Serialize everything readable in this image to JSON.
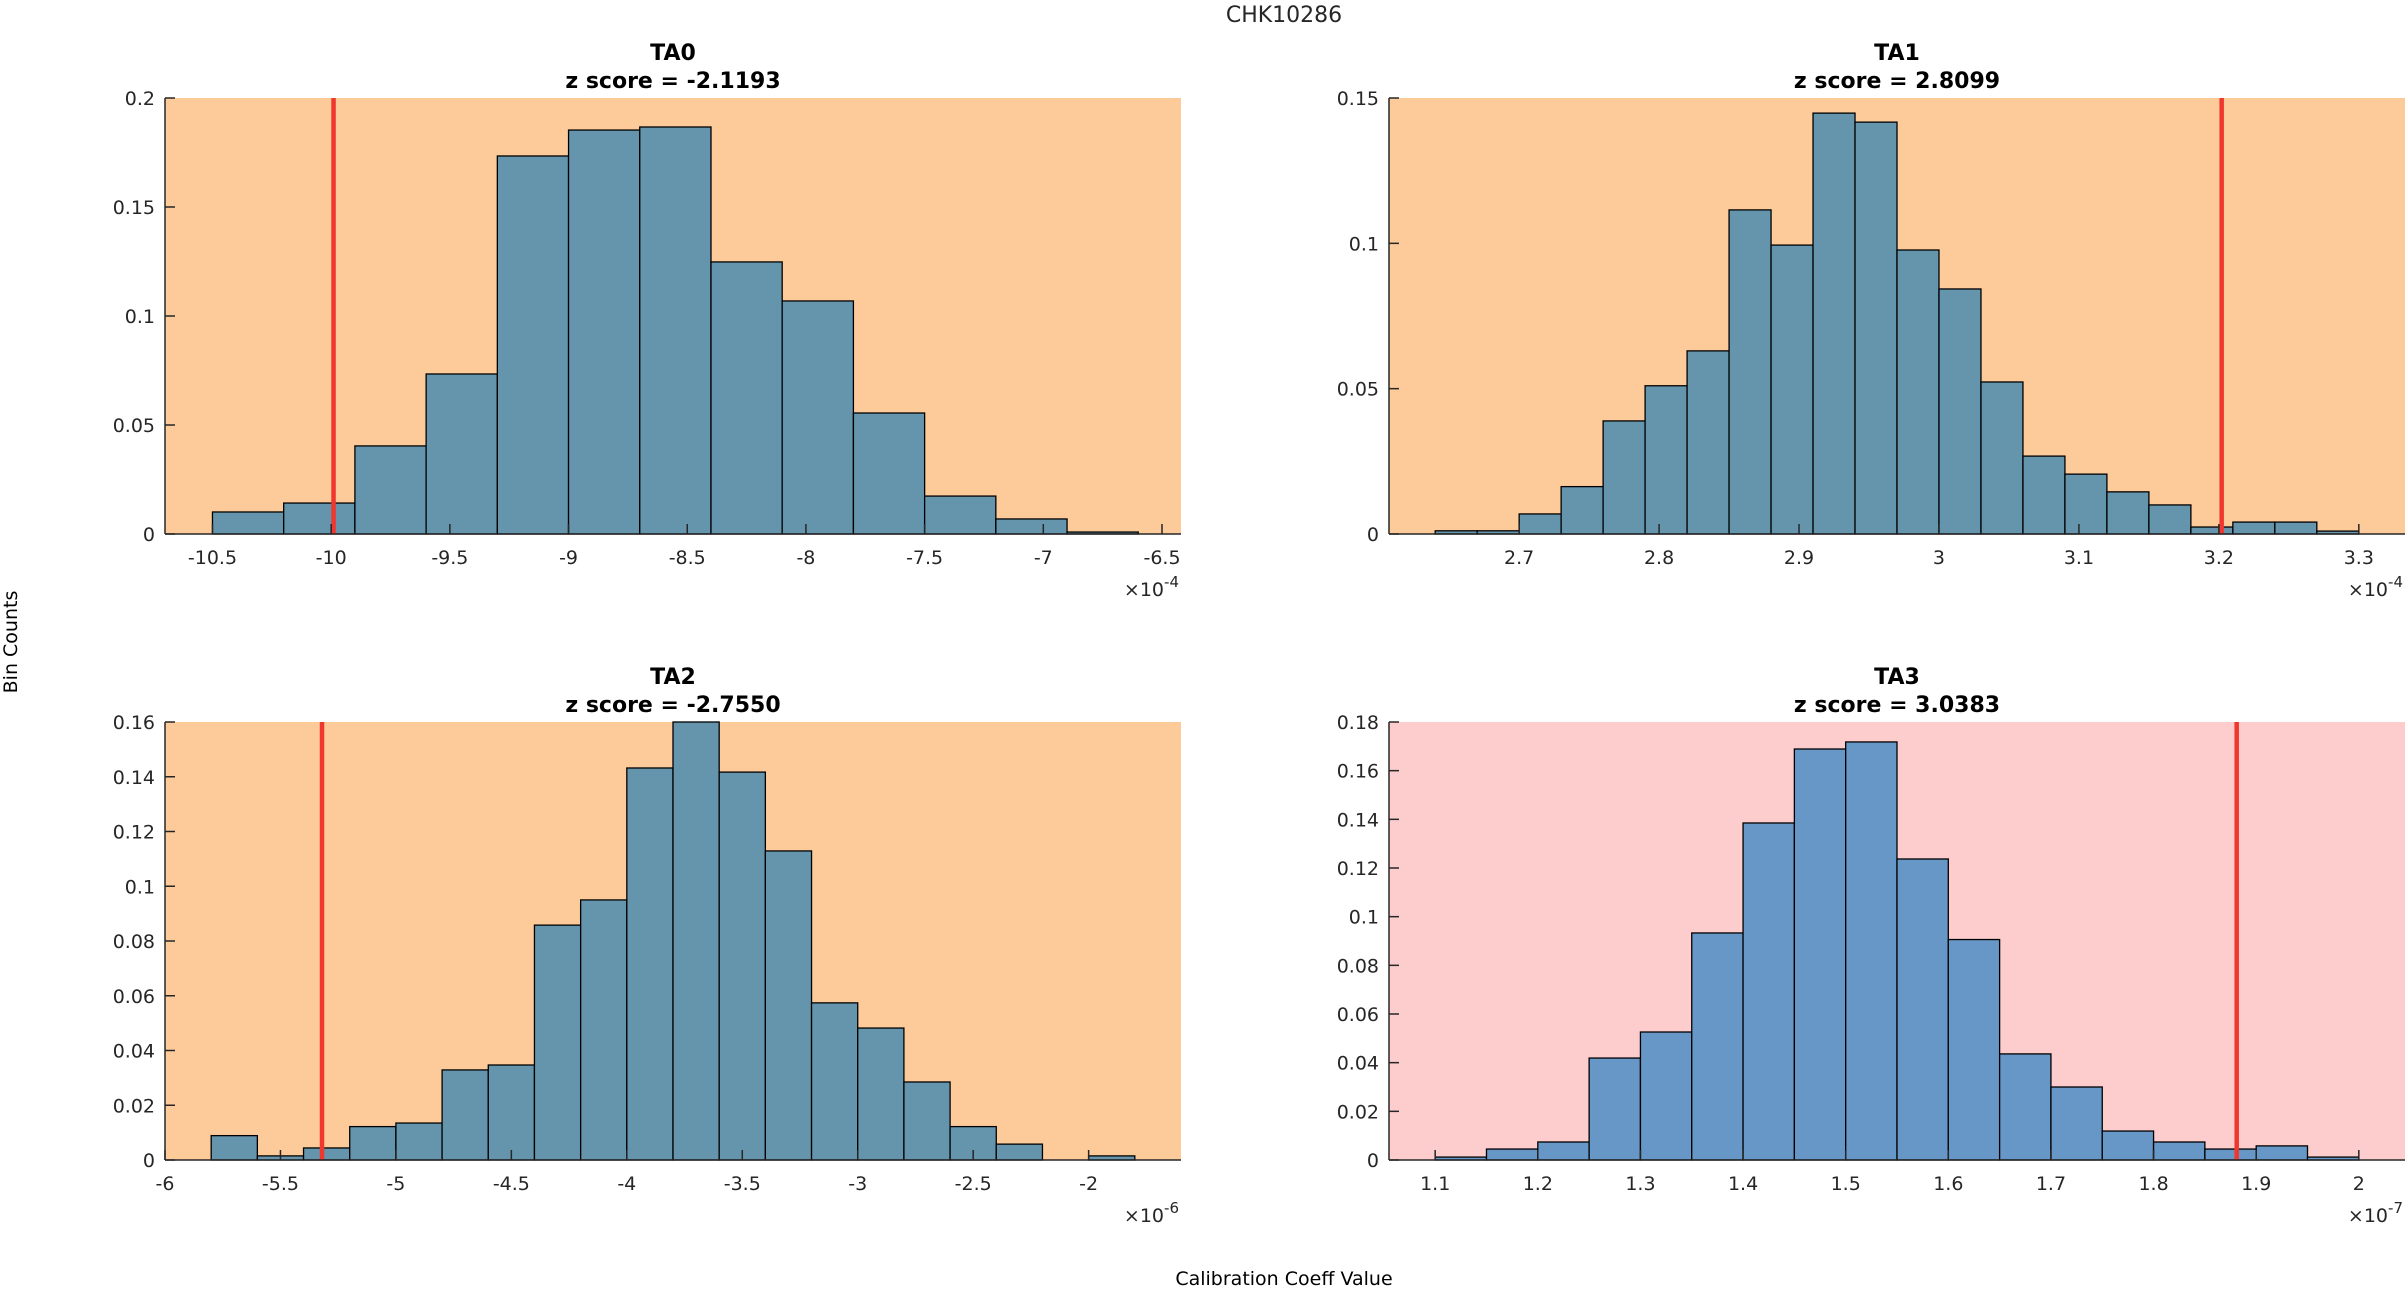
{
  "figure": {
    "title": "CHK10286",
    "ylabel": "Bin Counts",
    "xlabel": "Calibration Coeff Value",
    "colors": {
      "orange_bg": "#FDCA9A",
      "pink_bg": "#FDCCCC",
      "bar_steel": "#6595AD",
      "bar_blue": "#6797C6",
      "bar_edge": "#000000",
      "marker_line": "#F0372E"
    }
  },
  "chart_data": [
    {
      "type": "bar",
      "name": "TA0",
      "title": "TA0",
      "subtitle": "z score = -2.1193",
      "background": "orange",
      "bar_color": "steel",
      "x_exponent_label": "×10",
      "x_exponent": "-4",
      "bin_edges_start": -10.5,
      "bin_width": 0.3,
      "values": [
        0.0101,
        0.0142,
        0.0404,
        0.0734,
        0.1734,
        0.1853,
        0.1867,
        0.1248,
        0.1069,
        0.0555,
        0.0174,
        0.0069,
        0.0009
      ],
      "marker_x": -9.99,
      "xlim": [
        -10.7,
        -6.42
      ],
      "ylim": [
        0,
        0.2
      ],
      "xticks": [
        -10.5,
        -10,
        -9.5,
        -9,
        -8.5,
        -8,
        -7.5,
        -7,
        -6.5
      ],
      "xtick_labels": [
        "-10.5",
        "-10",
        "-9.5",
        "-9",
        "-8.5",
        "-8",
        "-7.5",
        "-7",
        "-6.5"
      ],
      "yticks": [
        0,
        0.05,
        0.1,
        0.15,
        0.2
      ],
      "ytick_labels": [
        "0",
        "0.05",
        "0.1",
        "0.15",
        "0.2"
      ]
    },
    {
      "type": "bar",
      "name": "TA1",
      "title": "TA1",
      "subtitle": "z score = 2.8099",
      "background": "orange",
      "bar_color": "steel",
      "x_exponent_label": "×10",
      "x_exponent": "-4",
      "bin_edges_start": 2.64,
      "bin_width": 0.03,
      "values": [
        0.0011,
        0.0011,
        0.0069,
        0.0163,
        0.0389,
        0.051,
        0.063,
        0.1115,
        0.0994,
        0.1448,
        0.1417,
        0.0977,
        0.0843,
        0.0523,
        0.0268,
        0.0206,
        0.0145,
        0.01,
        0.0024,
        0.0041,
        0.0041,
        0.001
      ],
      "marker_x": 3.202,
      "xlim": [
        2.607,
        3.333
      ],
      "ylim": [
        0,
        0.15
      ],
      "xticks": [
        2.7,
        2.8,
        2.9,
        3.0,
        3.1,
        3.2,
        3.3
      ],
      "xtick_labels": [
        "2.7",
        "2.8",
        "2.9",
        "3",
        "3.1",
        "3.2",
        "3.3"
      ],
      "yticks": [
        0,
        0.05,
        0.1,
        0.15
      ],
      "ytick_labels": [
        "0",
        "0.05",
        "0.1",
        "0.15"
      ]
    },
    {
      "type": "bar",
      "name": "TA2",
      "title": "TA2",
      "subtitle": "z score = -2.7550",
      "background": "orange",
      "bar_color": "steel",
      "x_exponent_label": "×10",
      "x_exponent": "-6",
      "bin_edges_start": -5.8,
      "bin_width": 0.2,
      "values": [
        0.0089,
        0.0015,
        0.0044,
        0.0122,
        0.0135,
        0.0329,
        0.0347,
        0.0858,
        0.095,
        0.1432,
        0.16,
        0.1417,
        0.1129,
        0.0574,
        0.0482,
        0.0285,
        0.0122,
        0.0058,
        0.0,
        0.0015
      ],
      "marker_x": -5.32,
      "xlim": [
        -6.0,
        -1.6
      ],
      "ylim": [
        0,
        0.16
      ],
      "xticks": [
        -6,
        -5.5,
        -5,
        -4.5,
        -4,
        -3.5,
        -3,
        -2.5,
        -2
      ],
      "xtick_labels": [
        "-6",
        "-5.5",
        "-5",
        "-4.5",
        "-4",
        "-3.5",
        "-3",
        "-2.5",
        "-2"
      ],
      "yticks": [
        0,
        0.02,
        0.04,
        0.06,
        0.08,
        0.1,
        0.12,
        0.14,
        0.16
      ],
      "ytick_labels": [
        "0",
        "0.02",
        "0.04",
        "0.06",
        "0.08",
        "0.1",
        "0.12",
        "0.14",
        "0.16"
      ]
    },
    {
      "type": "bar",
      "name": "TA3",
      "title": "TA3",
      "subtitle": "z score = 3.0383",
      "background": "pink",
      "bar_color": "blue",
      "x_exponent_label": "×10",
      "x_exponent": "-7",
      "bin_edges_start": 1.1,
      "bin_width": 0.05,
      "values": [
        0.0012,
        0.0045,
        0.0074,
        0.0419,
        0.0526,
        0.0933,
        0.1385,
        0.1689,
        0.1718,
        0.1237,
        0.0906,
        0.0436,
        0.03,
        0.0119,
        0.0074,
        0.0045,
        0.0058,
        0.0012
      ],
      "marker_x": 1.881,
      "xlim": [
        1.055,
        2.045
      ],
      "ylim": [
        0,
        0.18
      ],
      "xticks": [
        1.1,
        1.2,
        1.3,
        1.4,
        1.5,
        1.6,
        1.7,
        1.8,
        1.9,
        2.0
      ],
      "xtick_labels": [
        "1.1",
        "1.2",
        "1.3",
        "1.4",
        "1.5",
        "1.6",
        "1.7",
        "1.8",
        "1.9",
        "2"
      ],
      "yticks": [
        0,
        0.02,
        0.04,
        0.06,
        0.08,
        0.1,
        0.12,
        0.14,
        0.16,
        0.18
      ],
      "ytick_labels": [
        "0",
        "0.02",
        "0.04",
        "0.06",
        "0.08",
        "0.1",
        "0.12",
        "0.14",
        "0.16",
        "0.18"
      ]
    }
  ]
}
